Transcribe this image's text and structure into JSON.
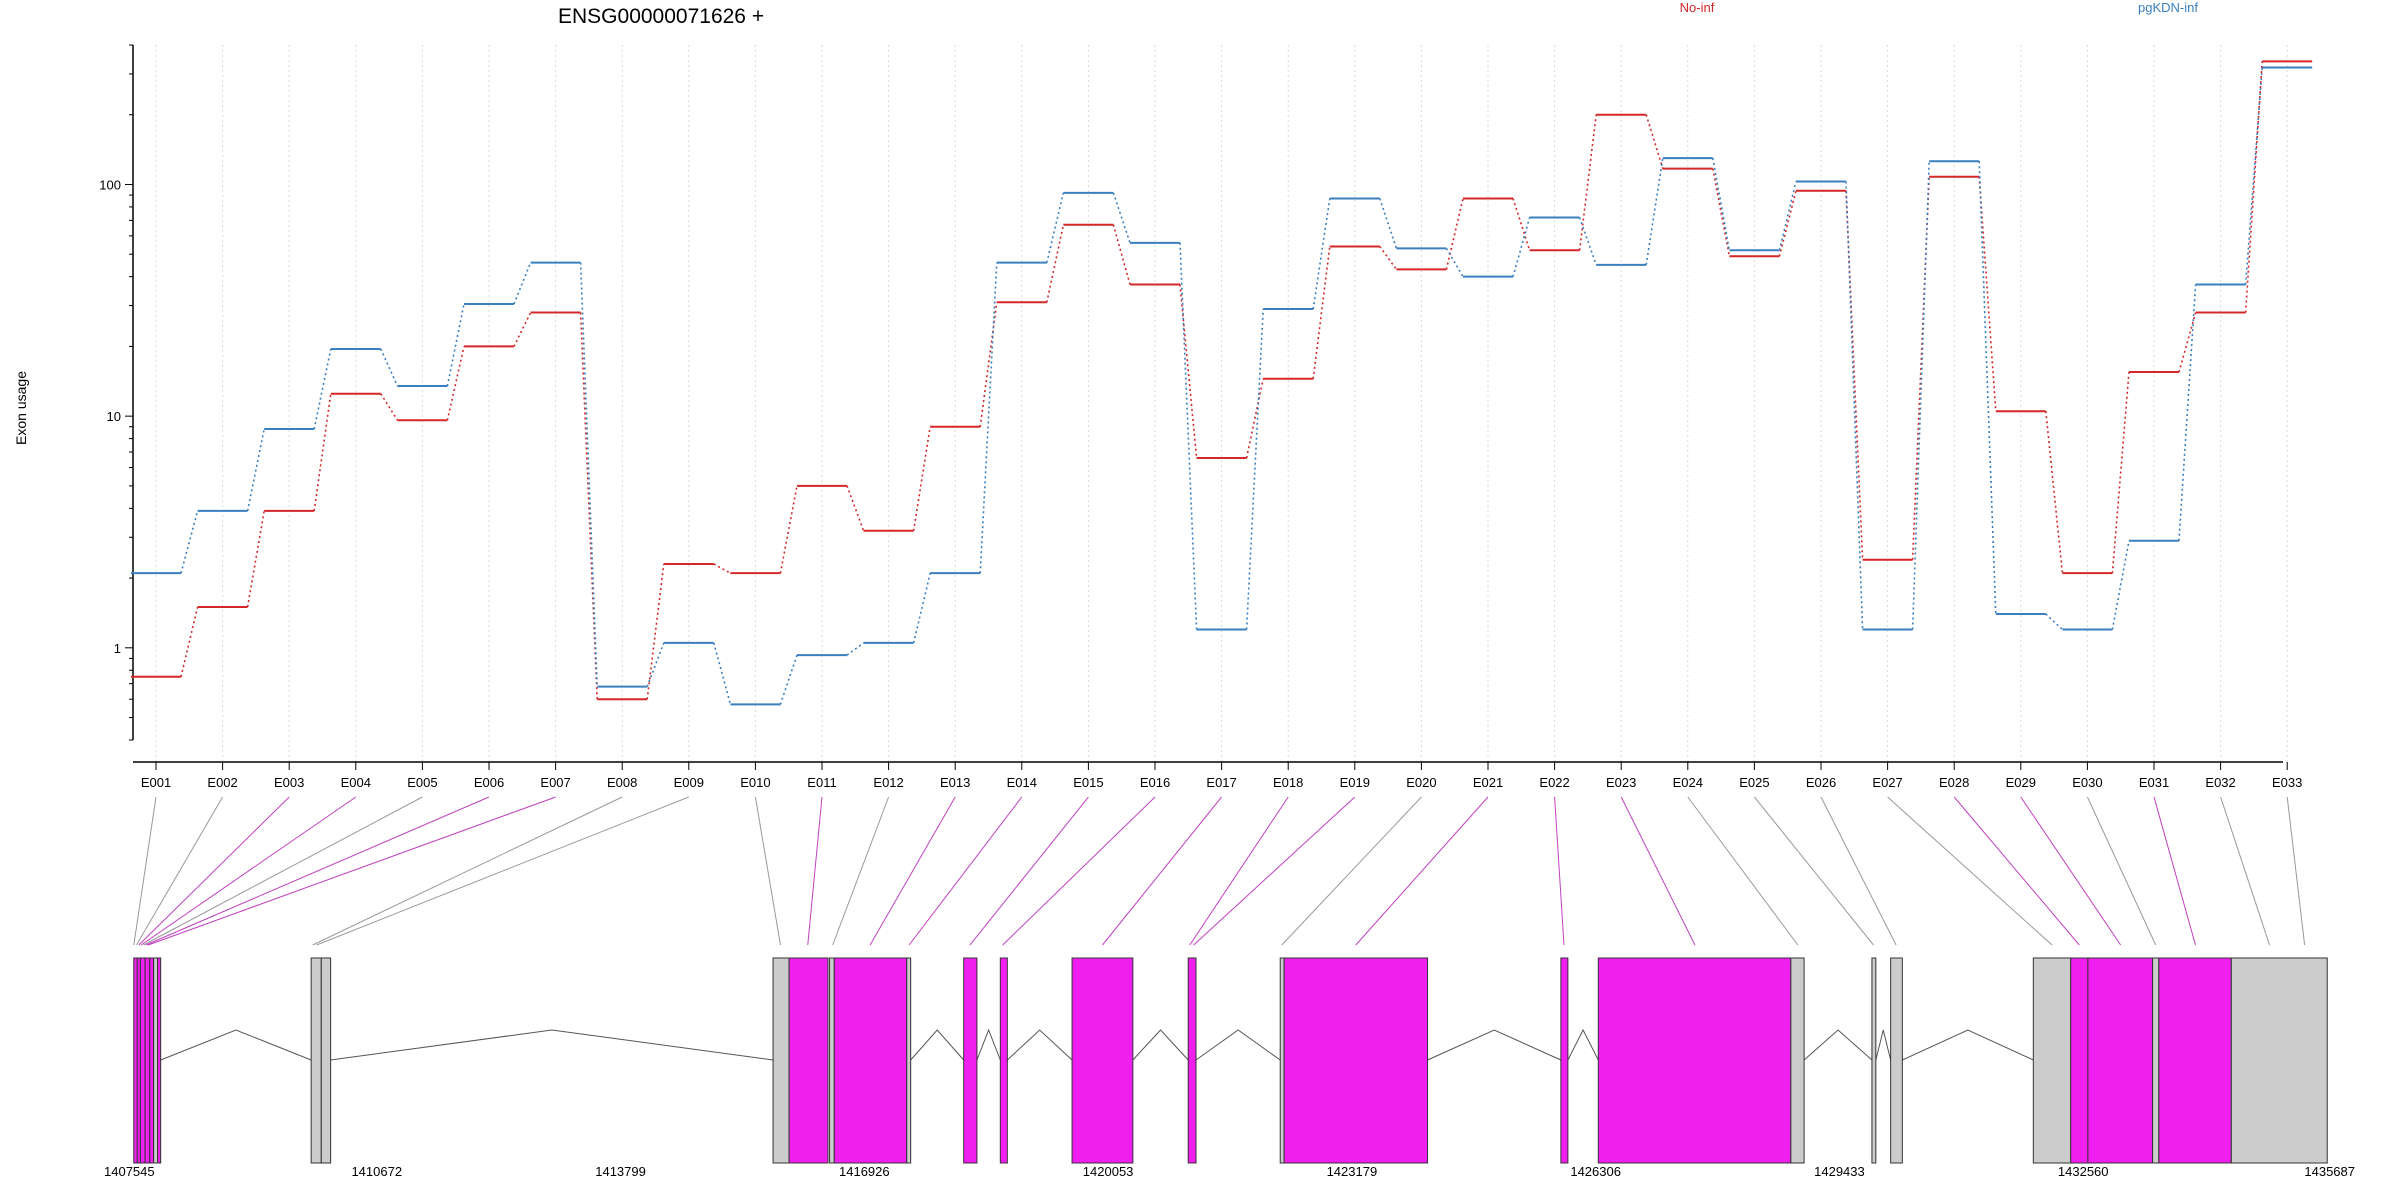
{
  "chart_data": {
    "type": "line",
    "title": "ENSG00000071626 +",
    "ylabel": "Exon usage",
    "xlabel": "",
    "y_scale": "log",
    "ylim": [
      0.4,
      400
    ],
    "y_ticks": [
      {
        "value": 1,
        "label": "1"
      },
      {
        "value": 10,
        "label": "10"
      },
      {
        "value": 100,
        "label": "100"
      }
    ],
    "legend_position": "top",
    "grid": "vertical dotted at each exon",
    "categories": [
      "E001",
      "E002",
      "E003",
      "E004",
      "E005",
      "E006",
      "E007",
      "E008",
      "E009",
      "E010",
      "E011",
      "E012",
      "E013",
      "E014",
      "E015",
      "E016",
      "E017",
      "E018",
      "E019",
      "E020",
      "E021",
      "E022",
      "E023",
      "E024",
      "E025",
      "E026",
      "E027",
      "E028",
      "E029",
      "E030",
      "E031",
      "E032",
      "E033"
    ],
    "series": [
      {
        "name": "No-inf",
        "color": "#d62728",
        "line_style": "solid steps, dotted connectors",
        "values": [
          0.75,
          1.5,
          3.9,
          12.5,
          9.6,
          20,
          28,
          0.6,
          2.3,
          2.1,
          5,
          3.2,
          9,
          31,
          67,
          37,
          6.6,
          14.5,
          54,
          43,
          87,
          52,
          200,
          117,
          49,
          94,
          2.4,
          108,
          10.5,
          2.1,
          15.5,
          28,
          340
        ]
      },
      {
        "name": "pgKDN-inf",
        "color": "#3a7fbf",
        "line_style": "solid steps, dotted connectors",
        "values": [
          2.1,
          3.9,
          8.8,
          19.5,
          13.5,
          30.5,
          46,
          0.68,
          1.05,
          0.57,
          0.93,
          1.05,
          2.1,
          46,
          92,
          56,
          1.2,
          29,
          87,
          53,
          40,
          72,
          45,
          130,
          52,
          103,
          1.2,
          126,
          1.4,
          1.2,
          2.9,
          37,
          320
        ]
      }
    ],
    "gene_model": {
      "coordinate_labels": [
        "1407545",
        "1410672",
        "1413799",
        "1416926",
        "1420053",
        "1423179",
        "1426306",
        "1429433",
        "1432560",
        "1435687"
      ],
      "coordinate_range": [
        1407545,
        1435687
      ],
      "tested_color": "#f01ff0",
      "untested_color": "#cccccc",
      "exons": [
        {
          "start": 1407555,
          "end": 1407600,
          "tested": true
        },
        {
          "start": 1407600,
          "end": 1407640,
          "tested": true
        },
        {
          "start": 1407640,
          "end": 1407700,
          "tested": true
        },
        {
          "start": 1407700,
          "end": 1407760,
          "tested": true
        },
        {
          "start": 1407760,
          "end": 1407810,
          "tested": true
        },
        {
          "start": 1407810,
          "end": 1407860,
          "tested": false
        },
        {
          "start": 1407860,
          "end": 1407900,
          "tested": true
        },
        {
          "start": 1409830,
          "end": 1409960,
          "tested": false
        },
        {
          "start": 1409960,
          "end": 1410080,
          "tested": false
        },
        {
          "start": 1415755,
          "end": 1415960,
          "tested": false
        },
        {
          "start": 1415960,
          "end": 1416460,
          "tested": true
        },
        {
          "start": 1416480,
          "end": 1416540,
          "tested": false
        },
        {
          "start": 1416540,
          "end": 1417470,
          "tested": true
        },
        {
          "start": 1417470,
          "end": 1417520,
          "tested": false
        },
        {
          "start": 1418200,
          "end": 1418370,
          "tested": true
        },
        {
          "start": 1418670,
          "end": 1418760,
          "tested": true
        },
        {
          "start": 1419590,
          "end": 1420370,
          "tested": true
        },
        {
          "start": 1421080,
          "end": 1421180,
          "tested": true
        },
        {
          "start": 1422260,
          "end": 1422310,
          "tested": false
        },
        {
          "start": 1422310,
          "end": 1424150,
          "tested": true
        },
        {
          "start": 1425860,
          "end": 1425950,
          "tested": true
        },
        {
          "start": 1426340,
          "end": 1428810,
          "tested": true
        },
        {
          "start": 1428810,
          "end": 1428980,
          "tested": false
        },
        {
          "start": 1429850,
          "end": 1429900,
          "tested": false
        },
        {
          "start": 1430090,
          "end": 1430240,
          "tested": false
        },
        {
          "start": 1431920,
          "end": 1432400,
          "tested": false
        },
        {
          "start": 1432400,
          "end": 1432620,
          "tested": true
        },
        {
          "start": 1432620,
          "end": 1433450,
          "tested": true
        },
        {
          "start": 1433450,
          "end": 1433530,
          "tested": false
        },
        {
          "start": 1433530,
          "end": 1434460,
          "tested": true
        },
        {
          "start": 1434460,
          "end": 1435690,
          "tested": false
        }
      ],
      "exon_label_links": [
        {
          "exon": "E001",
          "target": 1407555,
          "tested": false
        },
        {
          "exon": "E002",
          "target": 1407590,
          "tested": false
        },
        {
          "exon": "E003",
          "target": 1407620,
          "tested": true
        },
        {
          "exon": "E004",
          "target": 1407650,
          "tested": true
        },
        {
          "exon": "E005",
          "target": 1407680,
          "tested": false
        },
        {
          "exon": "E006",
          "target": 1407710,
          "tested": true
        },
        {
          "exon": "E007",
          "target": 1407740,
          "tested": true
        },
        {
          "exon": "E008",
          "target": 1409850,
          "tested": false
        },
        {
          "exon": "E009",
          "target": 1409900,
          "tested": false
        },
        {
          "exon": "E010",
          "target": 1415850,
          "tested": false
        },
        {
          "exon": "E011",
          "target": 1416200,
          "tested": true
        },
        {
          "exon": "E012",
          "target": 1416520,
          "tested": false
        },
        {
          "exon": "E013",
          "target": 1417000,
          "tested": true
        },
        {
          "exon": "E014",
          "target": 1417500,
          "tested": true
        },
        {
          "exon": "E015",
          "target": 1418280,
          "tested": true
        },
        {
          "exon": "E016",
          "target": 1418700,
          "tested": true
        },
        {
          "exon": "E017",
          "target": 1419980,
          "tested": true
        },
        {
          "exon": "E018",
          "target": 1421100,
          "tested": true
        },
        {
          "exon": "E019",
          "target": 1421150,
          "tested": true
        },
        {
          "exon": "E020",
          "target": 1422280,
          "tested": false
        },
        {
          "exon": "E021",
          "target": 1423230,
          "tested": true
        },
        {
          "exon": "E022",
          "target": 1425900,
          "tested": true
        },
        {
          "exon": "E023",
          "target": 1427580,
          "tested": true
        },
        {
          "exon": "E024",
          "target": 1428900,
          "tested": false
        },
        {
          "exon": "E025",
          "target": 1429870,
          "tested": false
        },
        {
          "exon": "E026",
          "target": 1430160,
          "tested": false
        },
        {
          "exon": "E027",
          "target": 1432160,
          "tested": false
        },
        {
          "exon": "E028",
          "target": 1432510,
          "tested": true
        },
        {
          "exon": "E029",
          "target": 1433040,
          "tested": true
        },
        {
          "exon": "E030",
          "target": 1433490,
          "tested": false
        },
        {
          "exon": "E031",
          "target": 1434000,
          "tested": true
        },
        {
          "exon": "E032",
          "target": 1434950,
          "tested": false
        },
        {
          "exon": "E033",
          "target": 1435400,
          "tested": false
        }
      ]
    }
  }
}
